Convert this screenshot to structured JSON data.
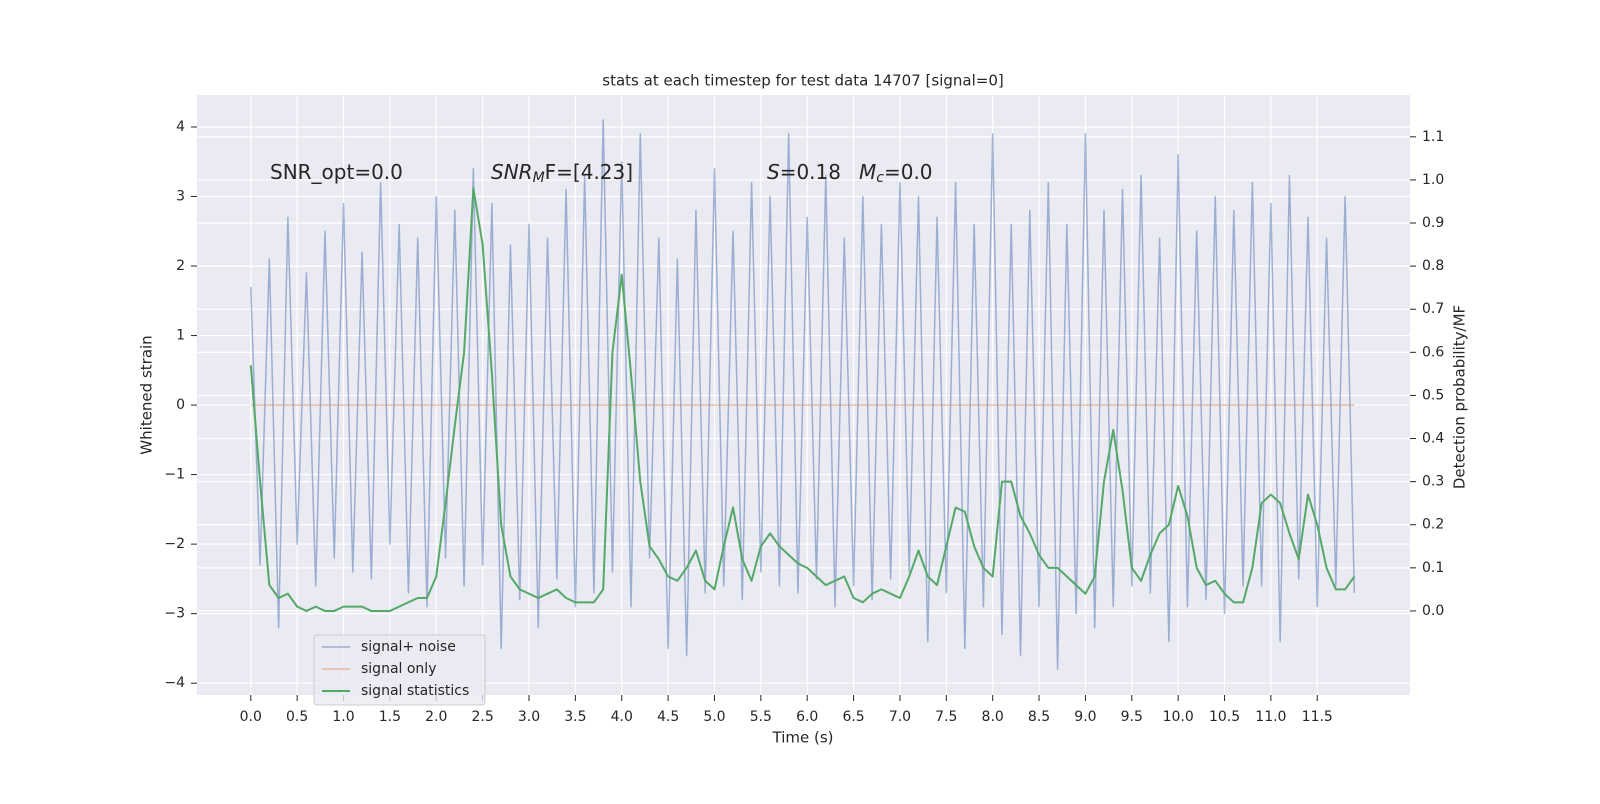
{
  "chart_data": {
    "type": "line",
    "title": "stats at each timestep for test data 14707 [signal=0]",
    "xlabel": "Time (s)",
    "ylabel": "Whitened strain",
    "y2label": "Detection probability/MF",
    "annotations": [
      [
        "SNR_opt=0.0"
      ],
      [
        "SNR",
        "M",
        "F=[4.23]"
      ],
      [
        "S",
        "=0.18"
      ],
      [
        "M",
        "c",
        "=0.0"
      ]
    ],
    "x": [
      0,
      0.1,
      0.2,
      0.3,
      0.4,
      0.5,
      0.6,
      0.7,
      0.8,
      0.9,
      1,
      1.1,
      1.2,
      1.3,
      1.4,
      1.5,
      1.6,
      1.7,
      1.8,
      1.9,
      2,
      2.1,
      2.2,
      2.3,
      2.4,
      2.5,
      2.6,
      2.7,
      2.8,
      2.9,
      3,
      3.1,
      3.2,
      3.3,
      3.4,
      3.5,
      3.6,
      3.7,
      3.8,
      3.9,
      4,
      4.1,
      4.2,
      4.3,
      4.4,
      4.5,
      4.6,
      4.7,
      4.8,
      4.9,
      5,
      5.1,
      5.2,
      5.3,
      5.4,
      5.5,
      5.6,
      5.7,
      5.8,
      5.9,
      6,
      6.1,
      6.2,
      6.3,
      6.4,
      6.5,
      6.6,
      6.7,
      6.8,
      6.9,
      7,
      7.1,
      7.2,
      7.3,
      7.4,
      7.5,
      7.6,
      7.7,
      7.8,
      7.9,
      8,
      8.1,
      8.2,
      8.3,
      8.4,
      8.5,
      8.6,
      8.7,
      8.8,
      8.9,
      9,
      9.1,
      9.2,
      9.3,
      9.4,
      9.5,
      9.6,
      9.7,
      9.8,
      9.9,
      10,
      10.1,
      10.2,
      10.3,
      10.4,
      10.5,
      10.6,
      10.7,
      10.8,
      10.9,
      11,
      11.1,
      11.2,
      11.3,
      11.4,
      11.5,
      11.6,
      11.7,
      11.8,
      11.9
    ],
    "series": [
      {
        "name": "signal+ noise",
        "color": "#4c72b0",
        "values": [
          1.7,
          -2.3,
          2.1,
          -3.2,
          2.7,
          -2.0,
          1.9,
          -2.6,
          2.5,
          -2.2,
          2.9,
          -2.4,
          2.2,
          -2.5,
          3.2,
          -2.0,
          2.6,
          -2.7,
          2.4,
          -2.9,
          3.0,
          -2.2,
          2.8,
          -2.6,
          3.4,
          -2.3,
          2.9,
          -3.5,
          2.3,
          -2.8,
          2.6,
          -3.2,
          2.4,
          -2.5,
          3.1,
          -2.9,
          3.3,
          -2.7,
          4.1,
          -2.4,
          3.5,
          -2.9,
          3.9,
          -2.2,
          2.4,
          -3.5,
          2.1,
          -3.6,
          2.8,
          -2.7,
          3.4,
          -2.6,
          2.5,
          -2.8,
          3.2,
          -2.4,
          3.0,
          -2.6,
          3.9,
          -2.7,
          2.7,
          -2.5,
          3.3,
          -2.9,
          2.4,
          -2.6,
          3.0,
          -2.8,
          2.6,
          -2.5,
          3.2,
          -2.4,
          3.0,
          -3.4,
          2.7,
          -2.7,
          3.2,
          -3.5,
          2.6,
          -2.9,
          3.9,
          -3.3,
          2.6,
          -3.6,
          2.8,
          -2.9,
          3.2,
          -3.8,
          2.6,
          -3.0,
          3.9,
          -3.2,
          2.8,
          -2.9,
          3.1,
          -2.6,
          3.3,
          -2.7,
          2.4,
          -3.4,
          3.6,
          -2.9,
          2.5,
          -2.8,
          3.0,
          -3.0,
          2.8,
          -2.6,
          3.2,
          -2.6,
          2.9,
          -3.4,
          3.3,
          -2.5,
          2.7,
          -2.9,
          2.4,
          -2.6,
          3.0,
          -2.7
        ]
      },
      {
        "name": "signal only",
        "color": "#dd8452",
        "values": [
          0,
          0,
          0,
          0,
          0,
          0,
          0,
          0,
          0,
          0,
          0,
          0,
          0,
          0,
          0,
          0,
          0,
          0,
          0,
          0,
          0,
          0,
          0,
          0,
          0,
          0,
          0,
          0,
          0,
          0,
          0,
          0,
          0,
          0,
          0,
          0,
          0,
          0,
          0,
          0,
          0,
          0,
          0,
          0,
          0,
          0,
          0,
          0,
          0,
          0,
          0,
          0,
          0,
          0,
          0,
          0,
          0,
          0,
          0,
          0,
          0,
          0,
          0,
          0,
          0,
          0,
          0,
          0,
          0,
          0,
          0,
          0,
          0,
          0,
          0,
          0,
          0,
          0,
          0,
          0,
          0,
          0,
          0,
          0,
          0,
          0,
          0,
          0,
          0,
          0,
          0,
          0,
          0,
          0,
          0,
          0,
          0,
          0,
          0,
          0,
          0,
          0,
          0,
          0,
          0,
          0,
          0,
          0,
          0,
          0,
          0,
          0,
          0,
          0,
          0,
          0,
          0,
          0,
          0,
          0
        ]
      },
      {
        "name": "signal statistics",
        "color": "#55a868",
        "axis": "y2",
        "values": [
          0.57,
          0.3,
          0.06,
          0.03,
          0.04,
          0.01,
          0.0,
          0.01,
          0.0,
          0.0,
          0.01,
          0.01,
          0.01,
          0.0,
          0.0,
          0.0,
          0.01,
          0.02,
          0.03,
          0.03,
          0.08,
          0.25,
          0.43,
          0.6,
          0.98,
          0.85,
          0.55,
          0.2,
          0.08,
          0.05,
          0.04,
          0.03,
          0.04,
          0.05,
          0.03,
          0.02,
          0.02,
          0.02,
          0.05,
          0.6,
          0.78,
          0.55,
          0.3,
          0.15,
          0.12,
          0.08,
          0.07,
          0.1,
          0.14,
          0.07,
          0.05,
          0.15,
          0.24,
          0.12,
          0.07,
          0.15,
          0.18,
          0.15,
          0.13,
          0.11,
          0.1,
          0.08,
          0.06,
          0.07,
          0.08,
          0.03,
          0.02,
          0.04,
          0.05,
          0.04,
          0.03,
          0.08,
          0.14,
          0.08,
          0.06,
          0.15,
          0.24,
          0.23,
          0.15,
          0.1,
          0.08,
          0.3,
          0.3,
          0.22,
          0.18,
          0.13,
          0.1,
          0.1,
          0.08,
          0.06,
          0.04,
          0.08,
          0.3,
          0.42,
          0.28,
          0.1,
          0.07,
          0.13,
          0.18,
          0.2,
          0.29,
          0.22,
          0.1,
          0.06,
          0.07,
          0.04,
          0.02,
          0.02,
          0.1,
          0.25,
          0.27,
          0.25,
          0.18,
          0.12,
          0.27,
          0.2,
          0.1,
          0.05,
          0.05,
          0.08
        ]
      }
    ],
    "xlim": [
      -0.58,
      12.5
    ],
    "xticks": [
      {
        "value": 0,
        "label": "0.0"
      },
      {
        "value": 0.5,
        "label": "0.5"
      },
      {
        "value": 1,
        "label": "1.0"
      },
      {
        "value": 1.5,
        "label": "1.5"
      },
      {
        "value": 2,
        "label": "2.0"
      },
      {
        "value": 2.5,
        "label": "2.5"
      },
      {
        "value": 3,
        "label": "3.0"
      },
      {
        "value": 3.5,
        "label": "3.5"
      },
      {
        "value": 4,
        "label": "4.0"
      },
      {
        "value": 4.5,
        "label": "4.5"
      },
      {
        "value": 5,
        "label": "5.0"
      },
      {
        "value": 5.5,
        "label": "5.5"
      },
      {
        "value": 6,
        "label": "6.0"
      },
      {
        "value": 6.5,
        "label": "6.5"
      },
      {
        "value": 7,
        "label": "7.0"
      },
      {
        "value": 7.5,
        "label": "7.5"
      },
      {
        "value": 8,
        "label": "8.0"
      },
      {
        "value": 8.5,
        "label": "8.5"
      },
      {
        "value": 9,
        "label": "9.0"
      },
      {
        "value": 9.5,
        "label": "9.5"
      },
      {
        "value": 10,
        "label": "10.0"
      },
      {
        "value": 10.5,
        "label": "10.5"
      },
      {
        "value": 11,
        "label": "11.0"
      },
      {
        "value": 11.5,
        "label": "11.5"
      }
    ],
    "ylim": [
      -4.17,
      4.46
    ],
    "yticks": [
      {
        "value": -4,
        "label": "−4"
      },
      {
        "value": -3,
        "label": "−3"
      },
      {
        "value": -2,
        "label": "−2"
      },
      {
        "value": -1,
        "label": "−1"
      },
      0,
      1,
      2,
      3,
      4
    ],
    "y2lim": [
      -0.195,
      1.197
    ],
    "y2ticks": [
      {
        "value": 0,
        "label": "0.0"
      },
      {
        "value": 0.1,
        "label": "0.1"
      },
      {
        "value": 0.2,
        "label": "0.2"
      },
      {
        "value": 0.3,
        "label": "0.3"
      },
      {
        "value": 0.4,
        "label": "0.4"
      },
      {
        "value": 0.5,
        "label": "0.5"
      },
      {
        "value": 0.6,
        "label": "0.6"
      },
      {
        "value": 0.7,
        "label": "0.7"
      },
      {
        "value": 0.8,
        "label": "0.8"
      },
      {
        "value": 0.9,
        "label": "0.9"
      },
      {
        "value": 1,
        "label": "1.0"
      },
      {
        "value": 1.1,
        "label": "1.1"
      }
    ],
    "grid": true,
    "legend": "lower left"
  }
}
